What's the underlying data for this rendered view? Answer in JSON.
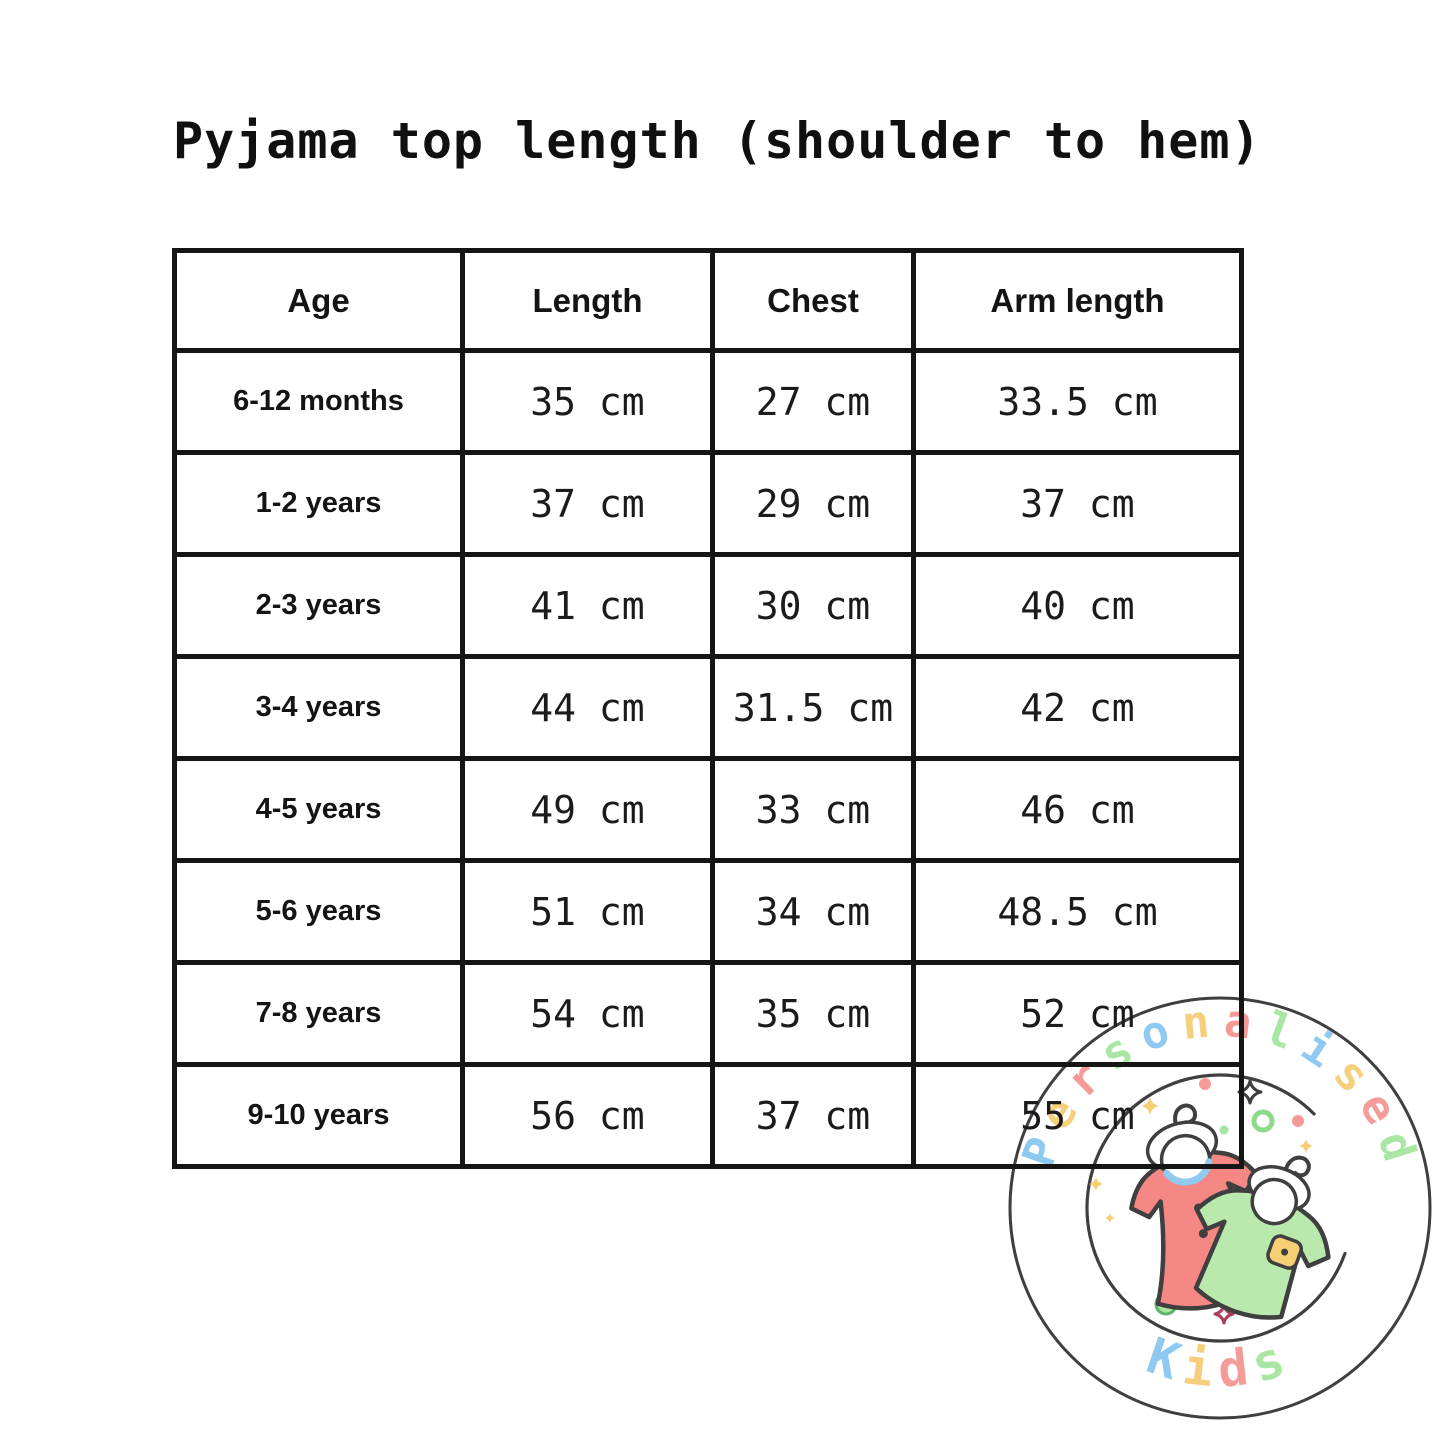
{
  "title": "Pyjama top length (shoulder to hem)",
  "chart_data": {
    "type": "table",
    "title": "Pyjama top length (shoulder to hem)",
    "columns": [
      "Age",
      "Length",
      "Chest",
      "Arm length"
    ],
    "rows": [
      [
        "6-12 months",
        "35 cm",
        "27 cm",
        "33.5 cm"
      ],
      [
        "1-2 years",
        "37 cm",
        "29 cm",
        "37 cm"
      ],
      [
        "2-3 years",
        "41 cm",
        "30 cm",
        "40 cm"
      ],
      [
        "3-4 years",
        "44 cm",
        "31.5 cm",
        "42 cm"
      ],
      [
        "4-5 years",
        "49 cm",
        "33 cm",
        "46 cm"
      ],
      [
        "5-6 years",
        "51 cm",
        "34 cm",
        "48.5 cm"
      ],
      [
        "7-8 years",
        "54 cm",
        "35 cm",
        "52 cm"
      ],
      [
        "9-10 years",
        "56 cm",
        "37 cm",
        "55 cm"
      ]
    ]
  },
  "watermark": {
    "arc_text": "Personalised",
    "bottom_text": "Kids",
    "letter_colors": [
      "#8ec9f2",
      "#f6cf7d",
      "#f49b98",
      "#a9e5a3"
    ],
    "outline_color": "#3f3f3f",
    "dress_color": "#f58784",
    "dress_collar_color": "#8fcbef",
    "shirt_color": "#b9e9ac",
    "pocket_color": "#f6ce73",
    "sparkle_yellow": "#f6ce73",
    "dot_pink": "#f49b98",
    "dot_green": "#a9e5a3"
  }
}
